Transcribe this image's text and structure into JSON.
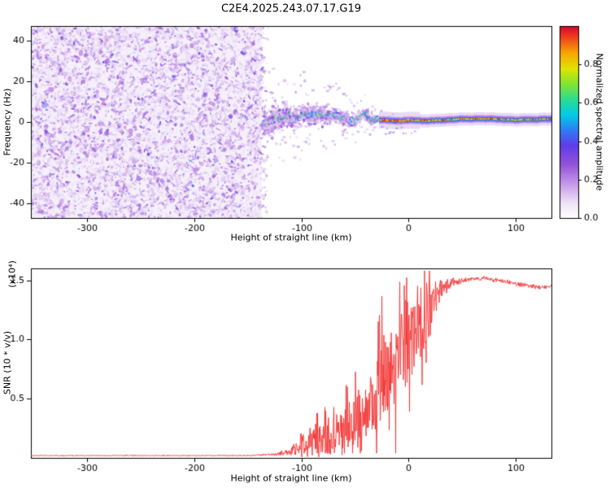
{
  "title": "C2E4.2025.243.07.17.G19",
  "chart_data": [
    {
      "type": "heatmap",
      "panel": "spectrogram",
      "title": "C2E4.2025.243.07.17.G19",
      "xlabel": "Height of straight line (km)",
      "ylabel": "Frequency (Hz)",
      "xlim": [
        -352,
        133
      ],
      "ylim": [
        -47,
        47
      ],
      "xtick_values": [
        -300,
        -200,
        -100,
        0,
        100
      ],
      "xtick_labels": [
        "-300",
        "-200",
        "-100",
        "0",
        "100"
      ],
      "ytick_values": [
        -40,
        -20,
        0,
        20,
        40
      ],
      "ytick_labels": [
        "-40",
        "-20",
        "0",
        "20",
        "40"
      ],
      "colorbar": {
        "label": "Normalized spectral amplitude",
        "tick_values": [
          0,
          0.2,
          0.4,
          0.6,
          0.8
        ],
        "tick_labels": [
          "0.0",
          "0.2",
          "0.4",
          "0.6",
          "0.8"
        ],
        "range": [
          0,
          1
        ]
      },
      "regions": {
        "noise_field": {
          "x_start": -352,
          "x_end": -137,
          "freq_span": [
            -47,
            47
          ],
          "amplitude": [
            0,
            0.35
          ],
          "description": "broadband purple speckle noise filling full frequency range"
        },
        "converging_signal": {
          "x_start": -137,
          "x_end": -28,
          "center_freq": 0,
          "halfwidth_start_hz": 19,
          "halfwidth_end_hz": 5,
          "core_amplitude": [
            0.35,
            0.7
          ],
          "description": "noisy signal band converging toward 0 Hz with cyan-green core"
        },
        "carrier_line": {
          "x_start": -28,
          "x_end": 133,
          "center_freq": 1,
          "halfwidth_hz": 4,
          "core_amplitude": [
            0.75,
            1.0
          ],
          "description": "narrow horizontal carrier with red-yellow core and green-cyan-blue-purple sheath"
        }
      }
    },
    {
      "type": "line",
      "panel": "snr",
      "xlabel": "Height of straight line (km)",
      "ylabel": "SNR (10 * v/v)",
      "scale_label": "(x10⁴)",
      "color": "#f23333",
      "xlim": [
        -352,
        133
      ],
      "ylim": [
        0,
        1.6
      ],
      "xtick_values": [
        -300,
        -200,
        -100,
        0,
        100
      ],
      "xtick_labels": [
        "-300",
        "-200",
        "-100",
        "0",
        "100"
      ],
      "ytick_values": [
        0.5,
        1.0,
        1.5
      ],
      "ytick_labels": [
        "0.5",
        "1.0",
        "1.5"
      ],
      "x": [
        -352,
        -300,
        -250,
        -200,
        -150,
        -125,
        -110,
        -100,
        -90,
        -80,
        -70,
        -60,
        -50,
        -40,
        -30,
        -20,
        -10,
        0,
        10,
        20,
        30,
        40,
        50,
        60,
        70,
        80,
        90,
        100,
        110,
        120,
        133
      ],
      "mean": [
        0.02,
        0.02,
        0.02,
        0.02,
        0.02,
        0.03,
        0.05,
        0.1,
        0.13,
        0.16,
        0.2,
        0.25,
        0.3,
        0.38,
        0.55,
        0.7,
        0.8,
        0.95,
        1.1,
        1.25,
        1.42,
        1.48,
        1.5,
        1.51,
        1.52,
        1.5,
        1.49,
        1.47,
        1.46,
        1.44,
        1.45
      ],
      "jitter": [
        0.005,
        0.005,
        0.005,
        0.005,
        0.006,
        0.01,
        0.04,
        0.14,
        0.15,
        0.18,
        0.18,
        0.24,
        0.28,
        0.34,
        0.45,
        0.5,
        0.48,
        0.42,
        0.38,
        0.28,
        0.1,
        0.05,
        0.025,
        0.02,
        0.02,
        0.02,
        0.02,
        0.02,
        0.02,
        0.02,
        0.02
      ]
    }
  ]
}
